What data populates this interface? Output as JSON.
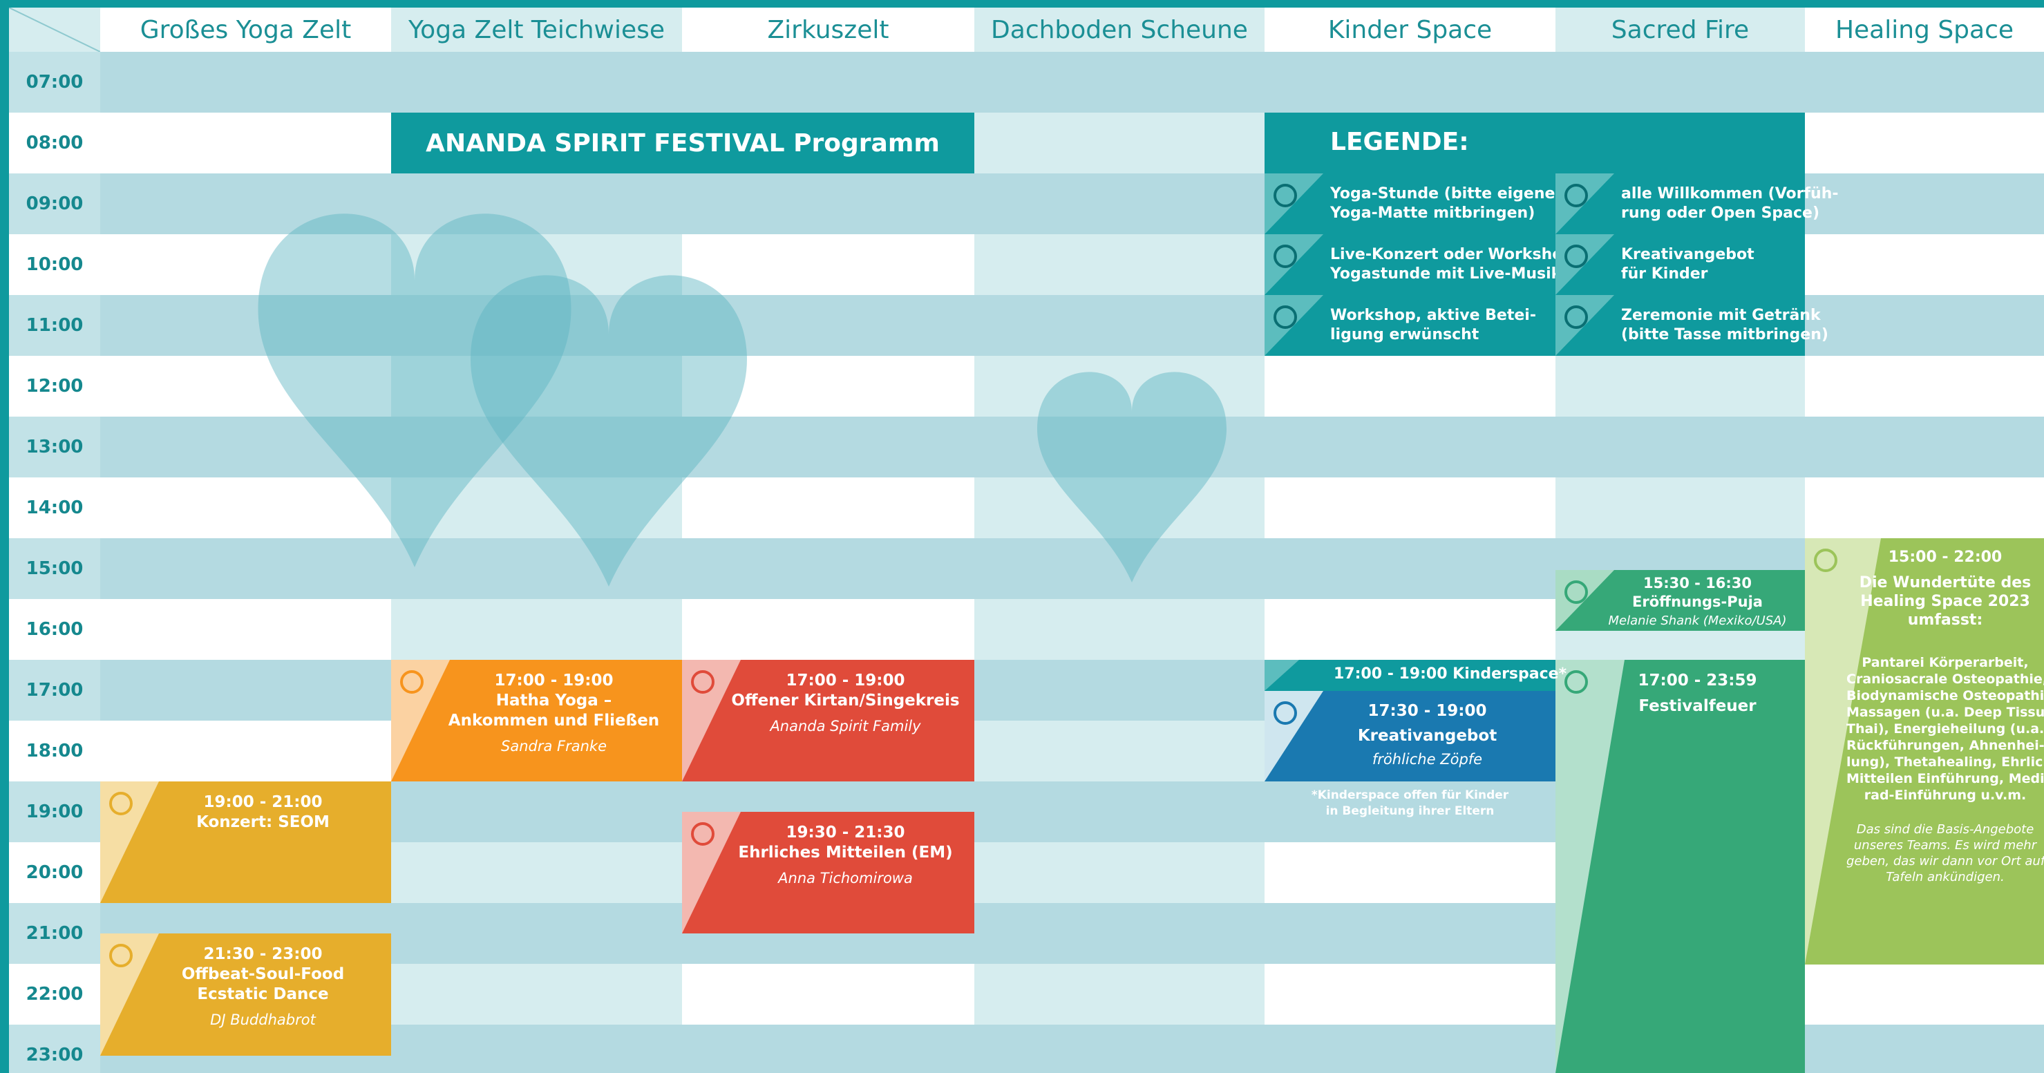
{
  "columns": [
    "Großes Yoga Zelt",
    "Yoga Zelt Teichwiese",
    "Zirkuszelt",
    "Dachboden Scheune",
    "Kinder Space",
    "Sacred Fire",
    "Healing Space"
  ],
  "times": [
    "07:00",
    "08:00",
    "09:00",
    "10:00",
    "11:00",
    "12:00",
    "13:00",
    "14:00",
    "15:00",
    "16:00",
    "17:00",
    "18:00",
    "19:00",
    "20:00",
    "21:00",
    "22:00",
    "23:00"
  ],
  "title": "ANANDA SPIRIT FESTIVAL Programm",
  "legend": {
    "title": "LEGENDE:",
    "items": [
      [
        "Yoga-Stunde (bitte eigene",
        "Yoga-Matte mitbringen)"
      ],
      [
        "Live-Konzert oder Workshop/",
        "Yogastunde mit Live-Musik"
      ],
      [
        "Workshop, aktive Betei-",
        "ligung erwünscht"
      ],
      [
        "alle Willkommen (Vorfüh-",
        "rung oder Open Space)"
      ],
      [
        "Kreativangebot",
        "für Kinder"
      ],
      [
        "Zeremonie mit Getränk",
        "(bitte Tasse mitbringen)"
      ]
    ]
  },
  "events": [
    {
      "time": "17:00 - 19:00",
      "title": [
        "Hatha Yoga –",
        "Ankommen und Fließen"
      ],
      "person": "Sandra Franke"
    },
    {
      "time": "17:00 - 19:00",
      "title": [
        "Offener Kirtan/Singekreis"
      ],
      "person": "Ananda Spirit Family"
    },
    {
      "time": "19:00 - 21:00",
      "title": [
        "Konzert: SEOM"
      ]
    },
    {
      "time": "19:30 - 21:30",
      "title": [
        "Ehrliches Mitteilen (EM)"
      ],
      "person": "Anna Tichomirowa"
    },
    {
      "time": "21:30 - 23:00",
      "title": [
        "Offbeat-Soul-Food",
        "Ecstatic Dance"
      ],
      "person": "DJ Buddhabrot"
    },
    {
      "time": "15:30 - 16:30",
      "title": [
        "Eröffnungs-Puja"
      ],
      "person": "Melanie Shank (Mexiko/USA)"
    },
    {
      "time": "17:00 - 23:59",
      "title": [
        "Festivalfeuer"
      ]
    }
  ],
  "kinderspace": {
    "label": "17:00 - 19:00 Kinderspace*",
    "time": "17:30 - 19:00",
    "title": "Kreativangebot",
    "person": "fröhliche Zöpfe",
    "note": [
      "*Kinderspace offen für Kinder",
      "in Begleitung ihrer Eltern"
    ]
  },
  "healing": {
    "time": "15:00 - 22:00",
    "title": [
      "Die Wundertüte des",
      "Healing Space 2023",
      "umfasst:"
    ],
    "list": [
      "Pantarei Körperarbeit,",
      "Craniosacrale Osteopathie,",
      "Biodynamische Osteopathie,",
      "Massagen (u.a. Deep Tissue,",
      "Thai), Energieheilung (u.a.",
      "Rückführungen, Ahnenhei-",
      "lung), Thetahealing, Ehrliches",
      "Mitteilen Einführung, Medizin-",
      "rad-Einführung u.v.m."
    ],
    "note": [
      "Das sind die Basis-Angebote",
      "unseres Teams. Es wird mehr",
      "geben, das wir dann vor Ort auf",
      "Tafeln ankündigen."
    ]
  }
}
